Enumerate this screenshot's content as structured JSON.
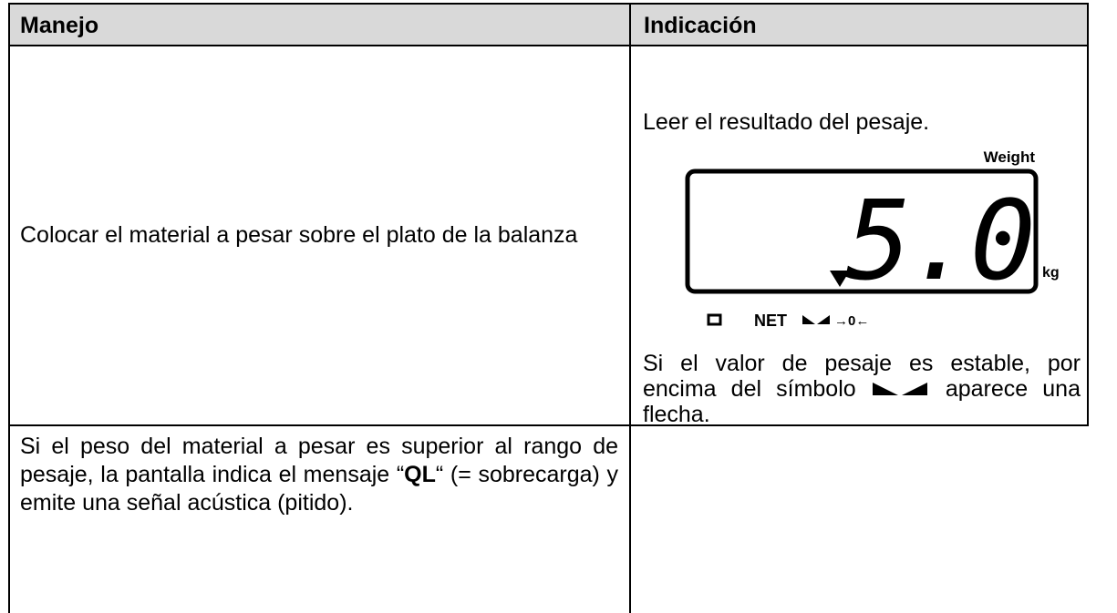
{
  "table": {
    "header": [
      "Manejo",
      "Indicación"
    ],
    "rows": [
      {
        "action": "Colocar el material a pesar sobre el plato de la balanza",
        "indication": {
          "intro": "Leer el resultado del pesaje.",
          "display": {
            "weight_label": "Weight",
            "reading": "5.0",
            "unit": "kg",
            "net": "NET",
            "zero": "→0←"
          },
          "note_before_symbol": "Si el valor de pesaje es estable, por encima del símbolo",
          "note_after_symbol": "aparece una flecha."
        }
      },
      {
        "action_before": "Si el peso del material a pesar es superior al rango de pesaje, la pantalla indica el mensaje “",
        "action_bold": "QL",
        "action_after": "“ (= sobrecarga) y emite una señal acústica (pitido)."
      }
    ]
  }
}
